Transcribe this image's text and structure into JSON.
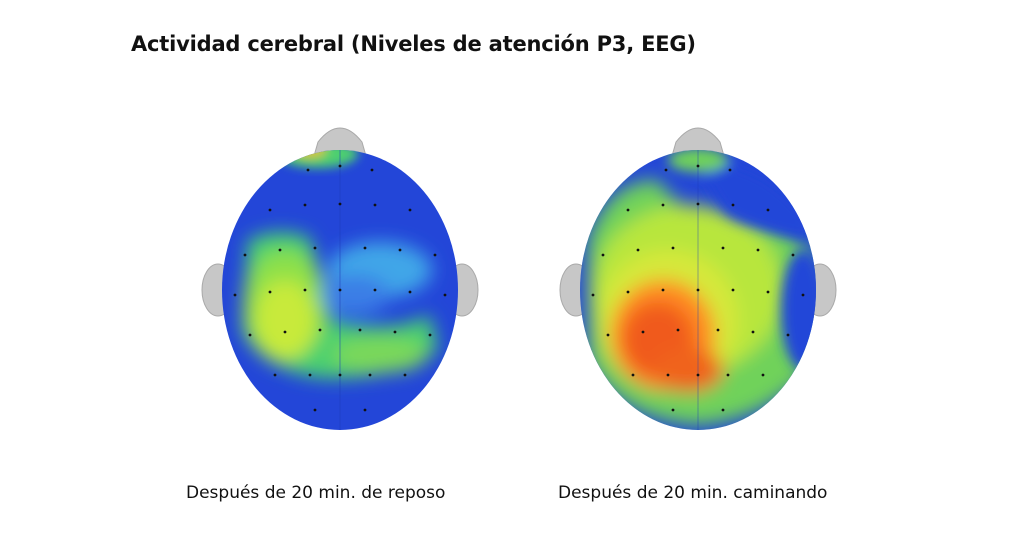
{
  "title": "Actividad cerebral (Niveles de atención P3, EEG)",
  "maps": [
    {
      "caption": "Después de 20 min. de reposo",
      "condition": "rest",
      "dominant_level": "low"
    },
    {
      "caption": "Después de 20 min. caminando",
      "condition": "walking",
      "dominant_level": "high"
    }
  ],
  "colors": {
    "low": "#2346d8",
    "mid_low": "#3fa6e8",
    "mid": "#3ec86a",
    "mid_high": "#c8ea3a",
    "high": "#ff6a1a",
    "peak": "#e8331a",
    "ear": "#c7c7c7"
  }
}
